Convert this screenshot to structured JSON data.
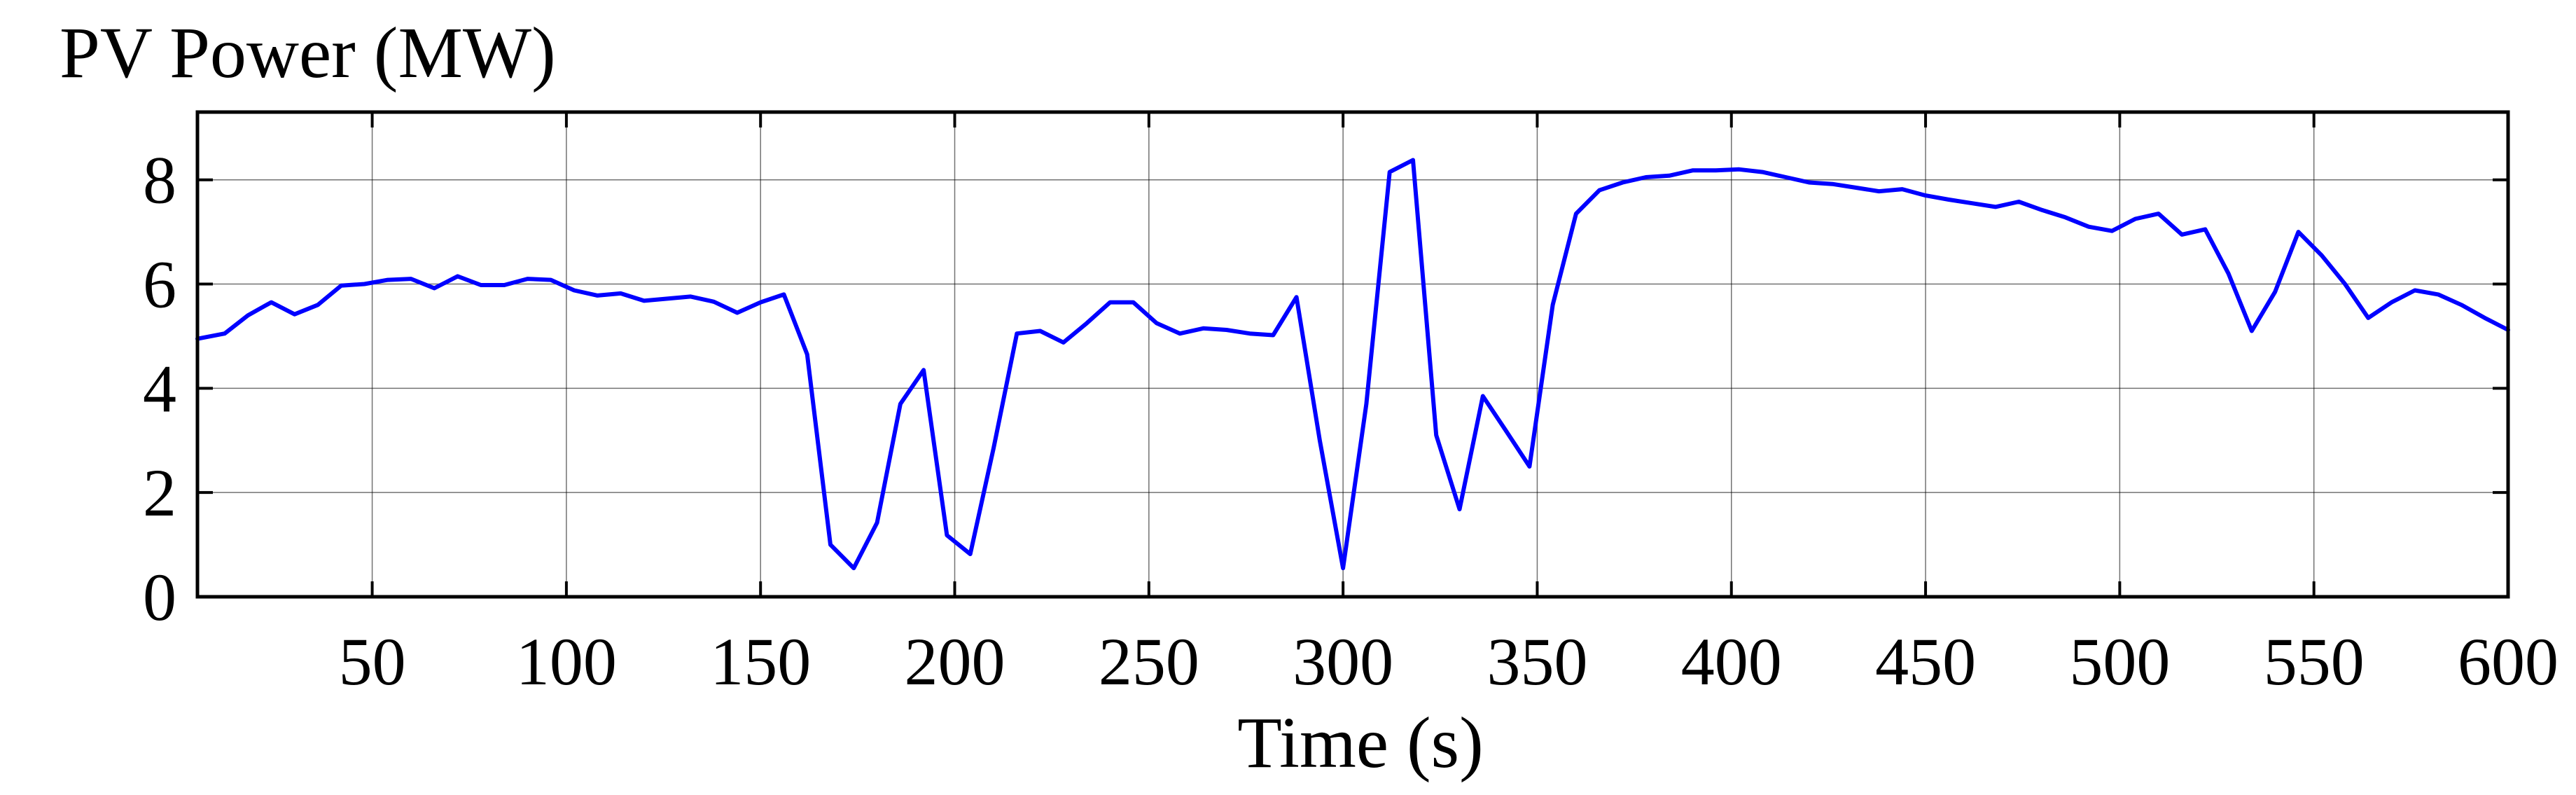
{
  "chart_data": {
    "type": "line",
    "title": "",
    "ylabel": "PV Power (MW)",
    "xlabel": "Time (s)",
    "xlim": [
      5,
      600
    ],
    "ylim": [
      0,
      9.3
    ],
    "xticks": [
      50,
      100,
      150,
      200,
      250,
      300,
      350,
      400,
      450,
      500,
      550,
      600
    ],
    "yticks": [
      0,
      2,
      4,
      6,
      8
    ],
    "grid": true,
    "line_color": "#0000ff",
    "series": [
      {
        "x": [
          5,
          12,
          18,
          24,
          30,
          36,
          42,
          48,
          54,
          60,
          66,
          72,
          78,
          84,
          90,
          96,
          102,
          108,
          114,
          120,
          126,
          132,
          138,
          144,
          150,
          156,
          162,
          168,
          174,
          180,
          186,
          192,
          198,
          204,
          210,
          216,
          222,
          228,
          234,
          240,
          246,
          252,
          258,
          264,
          270,
          276,
          282,
          288,
          294,
          300,
          306,
          312,
          318,
          324,
          330,
          336,
          342,
          348,
          354,
          360,
          366,
          372,
          378,
          384,
          390,
          396,
          402,
          408,
          414,
          420,
          426,
          432,
          438,
          444,
          450,
          456,
          462,
          468,
          474,
          480,
          486,
          492,
          498,
          504,
          510,
          516,
          522,
          528,
          534,
          540,
          546,
          552,
          558,
          564,
          570,
          576,
          582,
          588,
          594,
          600
        ],
        "values": [
          4.95,
          5.05,
          5.4,
          5.65,
          5.42,
          5.6,
          5.97,
          6.0,
          6.08,
          6.1,
          5.92,
          6.15,
          5.98,
          5.98,
          6.1,
          6.08,
          5.88,
          5.78,
          5.82,
          5.68,
          5.72,
          5.76,
          5.66,
          5.45,
          5.65,
          5.8,
          4.65,
          1.0,
          0.55,
          1.42,
          3.7,
          4.35,
          1.18,
          0.82,
          2.85,
          5.05,
          5.1,
          4.88,
          5.25,
          5.65,
          5.65,
          5.25,
          5.05,
          5.15,
          5.12,
          5.05,
          5.02,
          5.75,
          3.0,
          0.55,
          3.7,
          8.15,
          8.38,
          3.1,
          1.68,
          3.85,
          3.18,
          2.5,
          5.6,
          7.35,
          7.8,
          7.95,
          8.05,
          8.08,
          8.18,
          8.18,
          8.2,
          8.15,
          8.05,
          7.95,
          7.92,
          7.85,
          7.78,
          7.82,
          7.7,
          7.62,
          7.55,
          7.48,
          7.58,
          7.42,
          7.28,
          7.1,
          7.02,
          7.25,
          7.35,
          6.95,
          7.05,
          6.2,
          5.1,
          5.85,
          7.0,
          6.55,
          6.0,
          5.35,
          5.65,
          5.88,
          5.8,
          5.6,
          5.35,
          5.12
        ]
      }
    ]
  }
}
